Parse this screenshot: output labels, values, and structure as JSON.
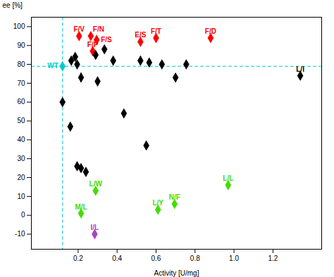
{
  "chart_data": {
    "type": "scatter",
    "xlabel": "Activity [U/mg]",
    "ylabel": "ee [%]",
    "xlim": [
      -0.04,
      1.45
    ],
    "ylim": [
      -18,
      105
    ],
    "xticks": [
      0.2,
      0.4,
      0.6,
      0.8,
      {
        "value": 1.0,
        "label": "1.0"
      },
      1.2
    ],
    "yticks": [
      -10,
      0,
      10,
      20,
      30,
      40,
      50,
      60,
      70,
      80,
      90,
      100
    ],
    "grid": false,
    "marker": "diamond",
    "annotations": [
      {
        "type": "hline",
        "y": 79,
        "color": "#00CCCC",
        "line_style": "dashed"
      },
      {
        "type": "vline",
        "x": 0.12,
        "color": "#00CCCC",
        "line_style": "dashed"
      }
    ],
    "series": [
      {
        "color": "#00CCCC",
        "x": [
          0.12
        ],
        "values": [
          79
        ],
        "labels": [
          "WT"
        ]
      },
      {
        "color": "#FF0000",
        "x": [
          0.205,
          0.265,
          0.295,
          0.275,
          0.52,
          0.6,
          0.88
        ],
        "values": [
          95,
          95,
          93,
          87,
          92,
          94,
          94
        ],
        "labels": [
          "F/V",
          "F/N",
          "F/S",
          "F/P",
          "E/S",
          "F/T",
          "F/D"
        ]
      },
      {
        "color": "#000000",
        "x": [
          0.165,
          0.185,
          0.195,
          0.215,
          0.12,
          0.16,
          0.29,
          0.3,
          0.335,
          0.38,
          0.435,
          0.52,
          0.565,
          0.63,
          0.7,
          0.755,
          0.195,
          0.215,
          0.24,
          0.55,
          1.34
        ],
        "values": [
          82,
          84,
          80,
          73,
          60,
          47,
          85,
          71,
          88,
          82,
          54,
          82,
          81,
          80,
          73,
          80,
          26,
          25,
          23,
          37,
          74
        ],
        "errors": [
          2.0,
          1.0,
          2.0,
          2.5,
          1.0,
          0,
          0,
          1.5,
          0,
          0,
          0,
          0,
          0,
          0,
          0,
          0,
          2.0,
          2.0,
          0,
          0,
          0
        ],
        "labels": [
          null,
          null,
          null,
          null,
          null,
          null,
          null,
          null,
          null,
          null,
          null,
          null,
          null,
          null,
          null,
          null,
          null,
          null,
          null,
          null,
          "L/I"
        ]
      },
      {
        "color": "#44DD00",
        "x": [
          0.215,
          0.29,
          0.61,
          0.695,
          0.97
        ],
        "values": [
          1,
          13,
          3,
          6,
          16
        ],
        "labels": [
          "M/L",
          "L/W",
          "L/Y",
          "N/F",
          "L/L"
        ]
      },
      {
        "color": "#AA44BB",
        "x": [
          0.285
        ],
        "values": [
          -10
        ],
        "labels": [
          "I/L"
        ]
      }
    ]
  }
}
